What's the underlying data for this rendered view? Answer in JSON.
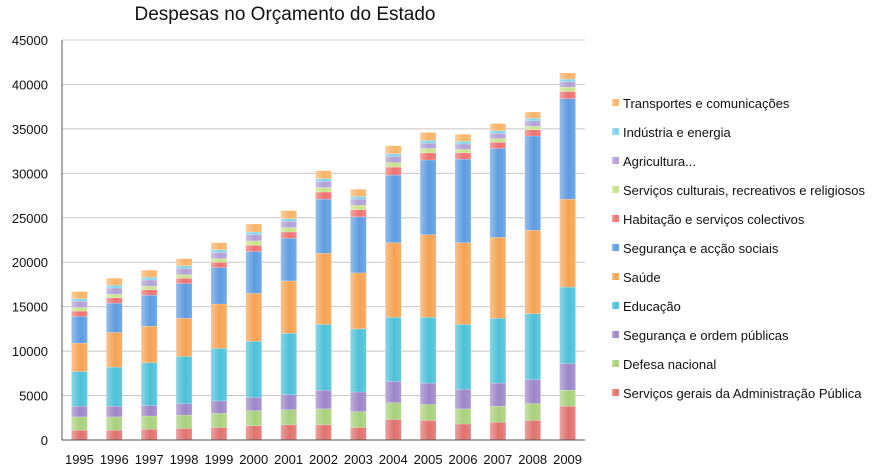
{
  "chart_data": {
    "type": "bar",
    "stacked": true,
    "title": "Despesas no Orçamento do Estado",
    "xlabel": "",
    "ylabel": "",
    "ylim": [
      0,
      45000
    ],
    "yticks": [
      0,
      5000,
      10000,
      15000,
      20000,
      25000,
      30000,
      35000,
      40000,
      45000
    ],
    "ytick_labels": [
      "0",
      "5000",
      "10000",
      "15000",
      "20000",
      "25000",
      "30000",
      "35000",
      "40000",
      "45000"
    ],
    "grid": true,
    "legend_position": "right",
    "categories": [
      "1995",
      "1996",
      "1997",
      "1998",
      "1999",
      "2000",
      "2001",
      "2002",
      "2003",
      "2004",
      "2005",
      "2006",
      "2007",
      "2008",
      "2009"
    ],
    "series": [
      {
        "name": "Serviços gerais da Administração Pública",
        "color": "#e0716d",
        "values": [
          1100,
          1100,
          1200,
          1300,
          1400,
          1600,
          1700,
          1700,
          1400,
          2300,
          2200,
          1800,
          2000,
          2200,
          3800
        ]
      },
      {
        "name": "Defesa nacional",
        "color": "#a8d07c",
        "values": [
          1500,
          1500,
          1500,
          1500,
          1600,
          1700,
          1700,
          1800,
          1800,
          1900,
          1800,
          1700,
          1800,
          1900,
          1800
        ]
      },
      {
        "name": "Segurança e ordem públicas",
        "color": "#9b86c8",
        "values": [
          1200,
          1200,
          1200,
          1300,
          1400,
          1500,
          1700,
          2100,
          2200,
          2400,
          2400,
          2200,
          2600,
          2700,
          3000
        ]
      },
      {
        "name": "Educação",
        "color": "#4cc0d8",
        "values": [
          3900,
          4400,
          4800,
          5300,
          5900,
          6300,
          6900,
          7400,
          7100,
          7200,
          7400,
          7300,
          7300,
          7400,
          8600
        ]
      },
      {
        "name": "Saúde",
        "color": "#f5a252",
        "values": [
          3200,
          3900,
          4100,
          4300,
          5000,
          5400,
          5900,
          8000,
          6300,
          8400,
          9300,
          9200,
          9100,
          9400,
          9900
        ]
      },
      {
        "name": "Segurança e acção sociais",
        "color": "#5d9be0",
        "values": [
          3000,
          3300,
          3500,
          3900,
          4100,
          4700,
          4800,
          6100,
          6300,
          7600,
          8400,
          9400,
          10000,
          10600,
          11300
        ]
      },
      {
        "name": "Habitação e serviços colectivos",
        "color": "#f07070",
        "values": [
          600,
          600,
          600,
          600,
          600,
          700,
          700,
          800,
          800,
          900,
          800,
          700,
          700,
          700,
          800
        ]
      },
      {
        "name": "Serviços culturais, recreativos e religiosos",
        "color": "#c7e38a",
        "values": [
          400,
          400,
          400,
          400,
          400,
          500,
          500,
          500,
          500,
          500,
          500,
          400,
          400,
          400,
          500
        ]
      },
      {
        "name": "Agricultura...",
        "color": "#b09fd6",
        "values": [
          700,
          700,
          700,
          700,
          700,
          700,
          700,
          700,
          700,
          700,
          600,
          600,
          600,
          600,
          600
        ]
      },
      {
        "name": "Indústria e energia",
        "color": "#7fd3e8",
        "values": [
          300,
          300,
          300,
          300,
          300,
          300,
          300,
          300,
          300,
          300,
          300,
          300,
          300,
          300,
          300
        ]
      },
      {
        "name": "Transportes e comunicações",
        "color": "#f7b366",
        "values": [
          800,
          800,
          800,
          800,
          800,
          900,
          900,
          900,
          800,
          900,
          900,
          800,
          800,
          700,
          700
        ]
      }
    ]
  }
}
